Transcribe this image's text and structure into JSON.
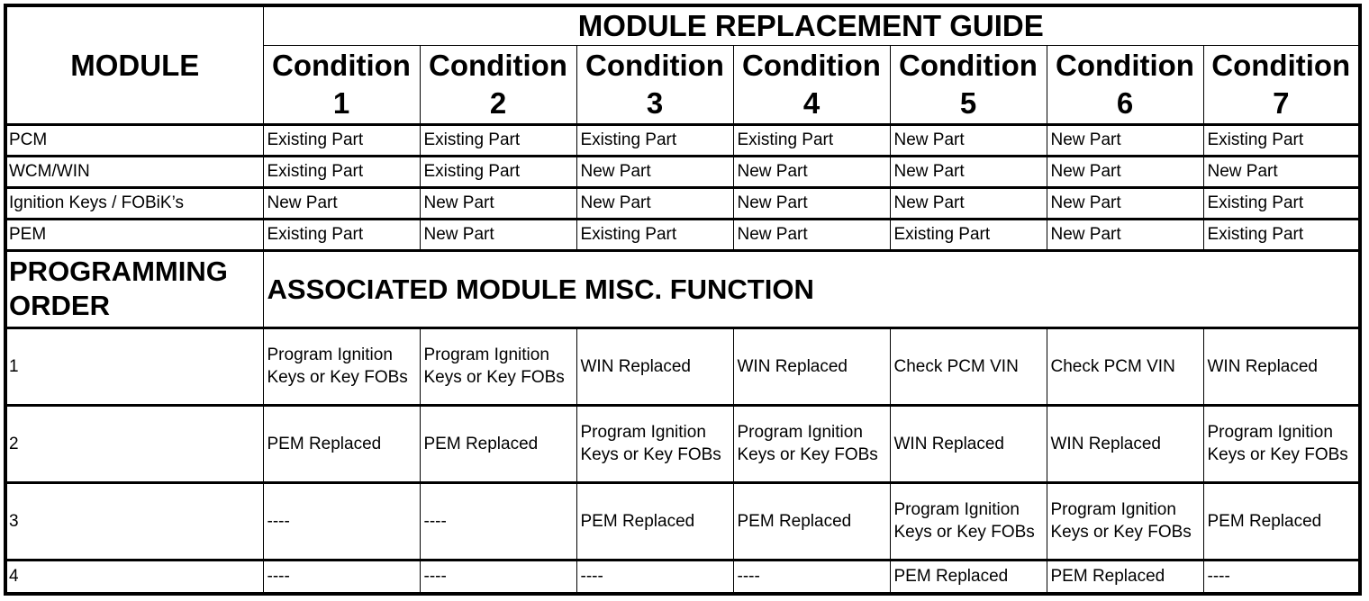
{
  "header": {
    "module_label": "MODULE",
    "guide_title": "MODULE REPLACEMENT GUIDE",
    "conditions": [
      "Condition 1",
      "Condition 2",
      "Condition 3",
      "Condition 4",
      "Condition 5",
      "Condition 6",
      "Condition 7"
    ]
  },
  "modules": [
    {
      "name": "PCM",
      "values": [
        "Existing Part",
        "Existing Part",
        "Existing Part",
        "Existing Part",
        "New Part",
        "New Part",
        "Existing Part"
      ]
    },
    {
      "name": "WCM/WIN",
      "values": [
        "Existing Part",
        "Existing Part",
        "New Part",
        "New Part",
        "New Part",
        "New Part",
        "New Part"
      ]
    },
    {
      "name": "Ignition Keys / FOBiK’s",
      "values": [
        "New Part",
        "New Part",
        "New Part",
        "New Part",
        "New Part",
        "New Part",
        "Existing Part"
      ]
    },
    {
      "name": "PEM",
      "values": [
        "Existing Part",
        "New Part",
        "Existing Part",
        "New Part",
        "Existing Part",
        "New Part",
        "Existing Part"
      ]
    }
  ],
  "programming": {
    "order_label": "PROGRAMMING ORDER",
    "function_label": "ASSOCIATED MODULE MISC. FUNCTION",
    "steps": [
      {
        "order": "1",
        "values": [
          "Program Ignition Keys or Key FOBs",
          "Program Ignition Keys or Key FOBs",
          "WIN Replaced",
          "WIN Replaced",
          "Check PCM VIN",
          "Check PCM VIN",
          "WIN Replaced"
        ]
      },
      {
        "order": "2",
        "values": [
          "PEM Replaced",
          "PEM Replaced",
          "Program Ignition Keys or Key FOBs",
          "Program Ignition Keys or Key FOBs",
          "WIN Replaced",
          "WIN Replaced",
          "Program Ignition Keys or Key FOBs"
        ]
      },
      {
        "order": "3",
        "values": [
          "----",
          "----",
          "PEM Replaced",
          "PEM Replaced",
          "Program Ignition Keys or Key FOBs",
          "Program Ignition Keys or Key FOBs",
          "PEM Replaced"
        ]
      },
      {
        "order": "4",
        "values": [
          "----",
          "----",
          "----",
          "----",
          "PEM Replaced",
          "PEM Replaced",
          "----"
        ]
      }
    ]
  }
}
